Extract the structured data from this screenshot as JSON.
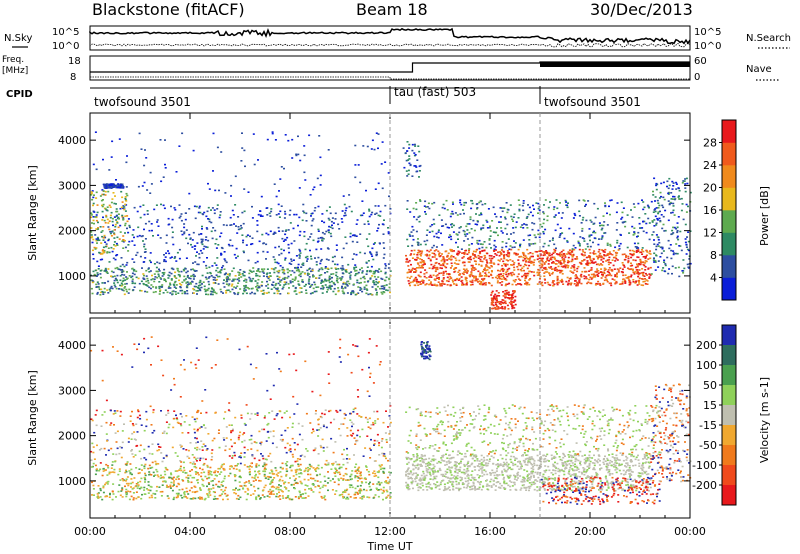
{
  "header": {
    "station": "Blackstone (fitACF)",
    "beam": "Beam 18",
    "date": "30/Dec/2013"
  },
  "nsky_panel": {
    "label": "N.Sky",
    "right_label": "N.Search",
    "ticks_left": [
      "10^5",
      "10^0"
    ],
    "ticks_right": [
      "10^5",
      "10^0"
    ]
  },
  "freq_panel": {
    "label_line1": "Freq.",
    "label_line2": "[MHz]",
    "right_label": "Nave",
    "ticks_left": [
      "18",
      "8"
    ],
    "ticks_right": [
      "60",
      "0"
    ]
  },
  "cpid": {
    "label": "CPID",
    "segments": [
      {
        "name": "twofsound 3501",
        "start": "00:00"
      },
      {
        "name": "tau (fast) 503",
        "start": "12:00"
      },
      {
        "name": "twofsound 3501",
        "start": "18:00"
      }
    ]
  },
  "chart_data": [
    {
      "type": "heatmap",
      "ylabel": "Slant Range [km]",
      "xlabel": "",
      "ylim": [
        180,
        4600
      ],
      "y_ticks": [
        "1000",
        "2000",
        "3000",
        "4000"
      ],
      "colorbar": {
        "label": "Power [dB]",
        "ticks": [
          "4",
          "8",
          "12",
          "16",
          "20",
          "24",
          "28"
        ],
        "colors": [
          "#0a1ed8",
          "#2d4ea0",
          "#2e8a63",
          "#5eaa4f",
          "#e8b81c",
          "#f08a1c",
          "#f05a1c",
          "#e8191c"
        ]
      }
    },
    {
      "type": "heatmap",
      "ylabel": "Slant Range [km]",
      "xlabel": "Time UT",
      "ylim": [
        180,
        4600
      ],
      "y_ticks": [
        "1000",
        "2000",
        "3000",
        "4000"
      ],
      "colorbar": {
        "label": "Velocity [m s-1]",
        "ticks": [
          "200",
          "100",
          "50",
          "15",
          "-15",
          "-50",
          "-100",
          "-200"
        ],
        "colors": [
          "#1f2bb0",
          "#2e6d5e",
          "#4aa04f",
          "#8fd15a",
          "#bfbfb0",
          "#f0a830",
          "#f07a1c",
          "#f04a1c",
          "#e8191c"
        ]
      },
      "x_ticks": [
        "00:00",
        "04:00",
        "08:00",
        "12:00",
        "16:00",
        "20:00",
        "00:00"
      ]
    }
  ]
}
